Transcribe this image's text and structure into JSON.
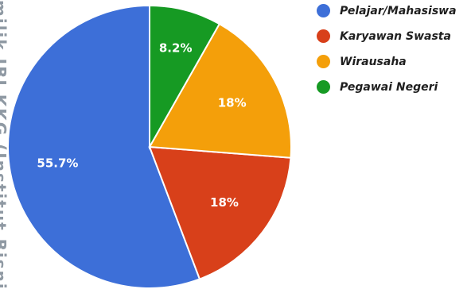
{
  "watermark_text": "milik IBI KKG (Institut Bisni",
  "chart_data": {
    "type": "pie",
    "title": "",
    "start_angle_deg": 90,
    "direction": "counterclockwise",
    "slices": [
      {
        "label": "Pelajar/Mahasiswa",
        "value": 55.7,
        "display": "55.7%",
        "color": "#3d6fd8"
      },
      {
        "label": "Karyawan Swasta",
        "value": 18,
        "display": "18%",
        "color": "#d8401a"
      },
      {
        "label": "Wirausaha",
        "value": 18,
        "display": "18%",
        "color": "#f49f0a"
      },
      {
        "label": "Pegawai Negeri",
        "value": 8.2,
        "display": "8.2%",
        "color": "#169a23"
      }
    ],
    "legend_position": "right"
  }
}
